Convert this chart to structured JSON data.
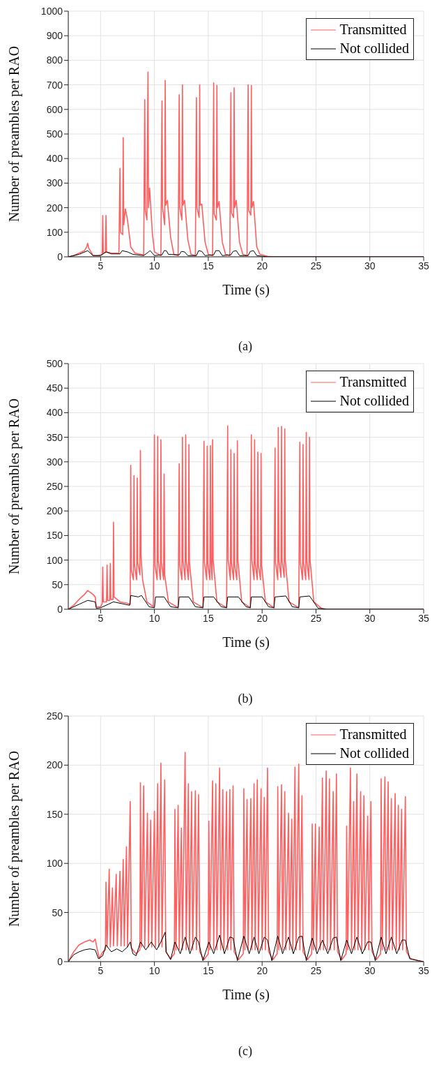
{
  "chart_data": [
    {
      "type": "line",
      "xlabel": "Time (s)",
      "ylabel": "Number of preambles per RAO",
      "annotations": [
        "(a)"
      ],
      "xlim": [
        2,
        35
      ],
      "xticks": [
        5,
        10,
        15,
        20,
        25,
        30,
        35
      ],
      "ylim": [
        0,
        1000
      ],
      "yticks": [
        0,
        100,
        200,
        300,
        400,
        500,
        600,
        700,
        800,
        900,
        1000
      ],
      "grid": true,
      "legend": "top right",
      "marker": "none",
      "series": [
        {
          "name": "Transmitted",
          "color": "#ff5f5f",
          "x": [
            2,
            2.5,
            3,
            3.5,
            3.7,
            3.8,
            3.9,
            4.1,
            4.3,
            4.8,
            5.15,
            5.2,
            5.25,
            5.45,
            5.5,
            5.55,
            6,
            6.7,
            6.8,
            6.85,
            7.05,
            7.1,
            7.15,
            7.3,
            7.5,
            7.8,
            8.2,
            9,
            9.1,
            9.15,
            9.3,
            9.4,
            9.45,
            9.55,
            9.8,
            10,
            10.6,
            10.7,
            10.75,
            10.95,
            11,
            11.05,
            11.2,
            11.5,
            11.8,
            12.2,
            12.3,
            12.35,
            12.55,
            12.6,
            12.65,
            12.8,
            13.1,
            13.4,
            13.8,
            13.9,
            13.95,
            14.15,
            14.2,
            14.25,
            14.4,
            14.7,
            15,
            15.4,
            15.5,
            15.55,
            15.75,
            15.8,
            15.85,
            16,
            16.3,
            16.6,
            17,
            17.1,
            17.15,
            17.35,
            17.4,
            17.45,
            17.6,
            17.9,
            18.2,
            18.6,
            18.7,
            18.75,
            18.95,
            19,
            19.05,
            19.2,
            19.5,
            19.8,
            20.5,
            21,
            35
          ],
          "values": [
            0,
            5,
            15,
            25,
            40,
            55,
            35,
            20,
            5,
            5,
            10,
            168,
            15,
            18,
            168,
            20,
            15,
            15,
            360,
            100,
            90,
            485,
            130,
            195,
            150,
            40,
            15,
            8,
            640,
            190,
            150,
            752,
            200,
            280,
            100,
            20,
            5,
            635,
            200,
            130,
            718,
            210,
            230,
            80,
            10,
            5,
            660,
            200,
            150,
            700,
            210,
            230,
            70,
            10,
            5,
            648,
            200,
            160,
            700,
            210,
            215,
            60,
            10,
            5,
            708,
            175,
            150,
            698,
            200,
            225,
            60,
            10,
            5,
            668,
            180,
            160,
            688,
            200,
            230,
            60,
            10,
            5,
            700,
            190,
            170,
            697,
            200,
            225,
            40,
            10,
            2,
            0,
            0
          ]
        },
        {
          "name": "Not collided",
          "color": "#000000",
          "x": [
            2,
            3,
            3.8,
            4.3,
            5,
            5.5,
            6,
            6.8,
            7,
            7.5,
            8,
            9,
            9.4,
            9.6,
            10,
            10.7,
            10.9,
            11.1,
            11.3,
            12.3,
            12.5,
            12.8,
            13.1,
            13.9,
            14.1,
            14.4,
            14.7,
            15.5,
            15.7,
            16,
            16.3,
            17.1,
            17.3,
            17.6,
            17.9,
            18.7,
            18.9,
            19.2,
            19.5,
            20.5,
            35
          ],
          "values": [
            0,
            10,
            25,
            5,
            5,
            20,
            12,
            12,
            25,
            20,
            10,
            5,
            18,
            25,
            5,
            8,
            25,
            25,
            10,
            8,
            22,
            20,
            5,
            5,
            25,
            22,
            5,
            8,
            25,
            25,
            5,
            8,
            22,
            25,
            5,
            5,
            22,
            25,
            5,
            0,
            0
          ]
        }
      ]
    },
    {
      "type": "line",
      "xlabel": "Time (s)",
      "ylabel": "Number of preambles per RAO",
      "annotations": [
        "(b)"
      ],
      "xlim": [
        2,
        35
      ],
      "xticks": [
        5,
        10,
        15,
        20,
        25,
        30,
        35
      ],
      "ylim": [
        0,
        500
      ],
      "yticks": [
        0,
        50,
        100,
        150,
        200,
        250,
        300,
        350,
        400,
        450,
        500
      ],
      "grid": true,
      "legend": "top right",
      "marker": "none",
      "series": [
        {
          "name": "Transmitted",
          "color": "#ff5f5f",
          "x": [
            2,
            2.5,
            3,
            3.5,
            3.8,
            4,
            4.3,
            4.5,
            4.6,
            5,
            5.15,
            5.2,
            5.25,
            5.55,
            5.6,
            5.65,
            5.85,
            5.9,
            5.95,
            6.15,
            6.2,
            6.25,
            6.8,
            7.5,
            7.75,
            7.8,
            7.85,
            8.05,
            8.1,
            8.15,
            8.35,
            8.4,
            8.45,
            8.65,
            8.7,
            8.75,
            8.9,
            9.3,
            9.9,
            10,
            10.05,
            10.25,
            10.3,
            10.35,
            10.55,
            10.6,
            10.65,
            10.85,
            10.9,
            10.95,
            11.3,
            12.2,
            12.3,
            12.35,
            12.55,
            12.6,
            12.65,
            12.85,
            12.9,
            12.95,
            13.15,
            13.2,
            13.25,
            13.6,
            14.5,
            14.6,
            14.65,
            14.85,
            14.9,
            14.95,
            15.15,
            15.2,
            15.25,
            15.35,
            15.4,
            15.45,
            15.8,
            16.7,
            16.8,
            16.85,
            17.05,
            17.1,
            17.15,
            17.35,
            17.4,
            17.45,
            17.65,
            17.7,
            17.75,
            18.1,
            18.9,
            19,
            19.05,
            19.25,
            19.3,
            19.35,
            19.55,
            19.6,
            19.65,
            19.85,
            19.9,
            19.95,
            20.3,
            21.1,
            21.2,
            21.25,
            21.45,
            21.5,
            21.55,
            21.75,
            21.8,
            21.85,
            22.05,
            22.1,
            22.15,
            22.5,
            23.4,
            23.5,
            23.55,
            23.75,
            23.8,
            23.85,
            24.05,
            24.1,
            24.15,
            24.35,
            24.4,
            24.45,
            24.8,
            25.5,
            26,
            35
          ],
          "values": [
            0,
            8,
            20,
            30,
            38,
            35,
            30,
            25,
            5,
            5,
            12,
            86,
            15,
            15,
            90,
            18,
            18,
            93,
            20,
            20,
            177,
            25,
            15,
            12,
            10,
            293,
            80,
            60,
            272,
            90,
            60,
            267,
            95,
            70,
            323,
            110,
            60,
            15,
            5,
            355,
            90,
            60,
            352,
            100,
            60,
            345,
            95,
            60,
            275,
            70,
            15,
            3,
            296,
            90,
            60,
            350,
            100,
            60,
            355,
            100,
            60,
            335,
            95,
            15,
            3,
            342,
            95,
            60,
            332,
            95,
            60,
            333,
            100,
            60,
            345,
            100,
            15,
            3,
            373,
            100,
            60,
            325,
            95,
            60,
            317,
            90,
            60,
            343,
            100,
            15,
            3,
            355,
            100,
            60,
            345,
            95,
            60,
            320,
            90,
            60,
            317,
            90,
            15,
            3,
            328,
            95,
            60,
            370,
            100,
            65,
            372,
            100,
            65,
            367,
            100,
            15,
            3,
            340,
            95,
            60,
            335,
            95,
            60,
            360,
            100,
            60,
            350,
            100,
            15,
            2,
            0,
            0
          ]
        },
        {
          "name": "Not collided",
          "color": "#000000",
          "x": [
            2,
            3,
            3.8,
            4.5,
            4.6,
            5,
            6.2,
            7.7,
            7.8,
            8.5,
            8.8,
            9.5,
            10,
            10.1,
            10.9,
            11.5,
            12.2,
            12.3,
            13.2,
            13.8,
            14.5,
            14.6,
            15.5,
            16.2,
            16.7,
            16.8,
            17.8,
            18.5,
            18.9,
            19,
            20,
            20.6,
            21.1,
            21.2,
            22.2,
            22.8,
            23.4,
            23.5,
            24.4,
            25.2,
            26,
            35
          ],
          "values": [
            0,
            10,
            18,
            15,
            2,
            3,
            15,
            8,
            28,
            25,
            28,
            5,
            3,
            25,
            25,
            5,
            3,
            25,
            25,
            5,
            3,
            25,
            25,
            5,
            3,
            25,
            25,
            5,
            3,
            25,
            25,
            5,
            3,
            25,
            27,
            5,
            3,
            25,
            27,
            2,
            0,
            0
          ]
        }
      ]
    },
    {
      "type": "line",
      "xlabel": "Time (s)",
      "ylabel": "Number of preambles per RAO",
      "annotations": [
        "(c)"
      ],
      "xlim": [
        2,
        35
      ],
      "xticks": [
        5,
        10,
        15,
        20,
        25,
        30,
        35
      ],
      "ylim": [
        0,
        250
      ],
      "yticks": [
        0,
        50,
        100,
        150,
        200,
        250
      ],
      "grid": true,
      "legend": "top right",
      "marker": "none",
      "series": [
        {
          "name": "Transmitted",
          "color": "#ff5f5f",
          "x": [
            2,
            2.5,
            3,
            3.5,
            4,
            4.3,
            4.5,
            4.7,
            4.9,
            5.2,
            5.45,
            5.5,
            5.6,
            5.8,
            5.9,
            6.1,
            6.2,
            6.45,
            6.55,
            6.8,
            6.9,
            7.1,
            7.2,
            7.4,
            7.5,
            7.75,
            7.85,
            8.3,
            8.65,
            8.7,
            8.8,
            9,
            9.1,
            9.35,
            9.45,
            9.65,
            9.75,
            10,
            10.1,
            10.3,
            10.4,
            10.6,
            10.7,
            10.95,
            11.05,
            11.5,
            11.85,
            11.9,
            12,
            12.2,
            12.3,
            12.5,
            12.6,
            12.85,
            12.95,
            13.15,
            13.25,
            13.45,
            13.55,
            13.8,
            13.9,
            14.1,
            14.2,
            14.6,
            15,
            15.05,
            15.15,
            15.4,
            15.5,
            15.7,
            15.8,
            16.05,
            16.15,
            16.35,
            16.45,
            16.7,
            16.8,
            17,
            17.1,
            17.3,
            17.4,
            17.8,
            18.25,
            18.3,
            18.4,
            18.6,
            18.7,
            18.95,
            19.05,
            19.25,
            19.35,
            19.55,
            19.65,
            19.9,
            20,
            20.2,
            20.3,
            20.5,
            20.6,
            21,
            21.4,
            21.45,
            21.55,
            21.8,
            21.9,
            22.1,
            22.2,
            22.45,
            22.55,
            22.75,
            22.85,
            23.05,
            23.15,
            23.4,
            23.5,
            23.7,
            23.8,
            24.2,
            24.6,
            24.65,
            24.75,
            24.95,
            25.05,
            25.3,
            25.4,
            25.6,
            25.7,
            25.95,
            26.05,
            26.25,
            26.35,
            26.6,
            26.7,
            26.9,
            27,
            27.4,
            27.8,
            27.85,
            27.95,
            28.2,
            28.3,
            28.5,
            28.6,
            28.8,
            28.9,
            29.15,
            29.25,
            29.45,
            29.55,
            29.8,
            29.9,
            30.1,
            30.2,
            30.6,
            31,
            31.05,
            31.15,
            31.4,
            31.5,
            31.7,
            31.8,
            32,
            32.1,
            32.35,
            32.45,
            32.65,
            32.75,
            32.95,
            33.05,
            33.3,
            33.4,
            33.8,
            34.5,
            35
          ],
          "values": [
            0,
            10,
            17,
            20,
            22,
            20,
            23,
            12,
            3,
            10,
            12,
            81,
            15,
            94,
            15,
            75,
            16,
            89,
            16,
            92,
            16,
            104,
            16,
            117,
            15,
            163,
            14,
            8,
            12,
            182,
            15,
            179,
            15,
            151,
            15,
            144,
            15,
            153,
            15,
            181,
            15,
            202,
            15,
            185,
            10,
            3,
            8,
            155,
            12,
            159,
            12,
            136,
            12,
            213,
            12,
            181,
            12,
            173,
            12,
            174,
            12,
            170,
            10,
            2,
            8,
            143,
            12,
            184,
            12,
            181,
            12,
            197,
            12,
            175,
            12,
            173,
            12,
            175,
            12,
            179,
            10,
            2,
            8,
            176,
            12,
            165,
            12,
            166,
            12,
            181,
            12,
            185,
            12,
            176,
            12,
            167,
            12,
            197,
            10,
            2,
            8,
            178,
            12,
            180,
            12,
            173,
            12,
            151,
            12,
            145,
            12,
            198,
            12,
            201,
            12,
            169,
            10,
            2,
            8,
            140,
            12,
            140,
            12,
            137,
            12,
            187,
            12,
            194,
            12,
            186,
            12,
            173,
            12,
            191,
            10,
            2,
            8,
            138,
            12,
            197,
            12,
            163,
            12,
            191,
            12,
            173,
            12,
            169,
            12,
            148,
            12,
            163,
            10,
            2,
            8,
            186,
            12,
            188,
            12,
            183,
            12,
            166,
            12,
            171,
            12,
            159,
            12,
            155,
            12,
            168,
            10,
            3,
            1,
            0
          ]
        },
        {
          "name": "Not collided",
          "color": "#000000",
          "x": [
            2,
            2.5,
            3,
            3.5,
            4,
            4.5,
            4.8,
            5.2,
            5.5,
            6,
            6.5,
            7,
            7.5,
            7.75,
            8,
            8.3,
            8.7,
            9.2,
            9.7,
            10.2,
            10.6,
            11,
            11.1,
            11.5,
            11.9,
            12.4,
            12.85,
            13.3,
            13.8,
            14.1,
            14.5,
            15.05,
            15.5,
            16.05,
            16.5,
            17,
            17.3,
            17.7,
            18.3,
            18.8,
            19.25,
            19.7,
            20.2,
            20.5,
            20.9,
            21.45,
            21.9,
            22.45,
            22.9,
            23.4,
            23.7,
            24.1,
            24.65,
            25.1,
            25.6,
            26.1,
            26.6,
            26.9,
            27.3,
            27.85,
            28.3,
            28.8,
            29.3,
            29.8,
            30.1,
            30.5,
            31.05,
            31.5,
            32,
            32.5,
            33,
            33.3,
            33.7,
            34.5,
            35
          ],
          "values": [
            0,
            7,
            10,
            12,
            13,
            12,
            3,
            6,
            17,
            10,
            13,
            10,
            15,
            20,
            8,
            6,
            20,
            12,
            20,
            12,
            20,
            30,
            10,
            2,
            20,
            8,
            25,
            8,
            25,
            20,
            1,
            20,
            8,
            27,
            8,
            25,
            24,
            1,
            26,
            8,
            25,
            8,
            25,
            22,
            1,
            26,
            8,
            25,
            8,
            25,
            26,
            1,
            24,
            8,
            22,
            8,
            24,
            25,
            1,
            22,
            8,
            25,
            8,
            20,
            20,
            1,
            25,
            8,
            25,
            8,
            22,
            22,
            3,
            1,
            0
          ]
        }
      ]
    }
  ]
}
